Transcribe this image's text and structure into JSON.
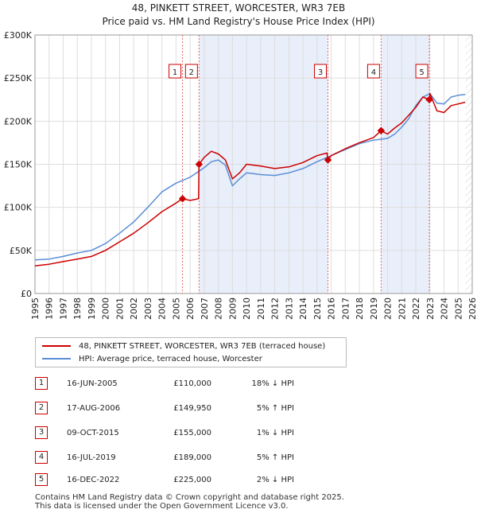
{
  "title_line1": "48, PINKETT STREET, WORCESTER, WR3 7EB",
  "title_line2": "Price paid vs. HM Land Registry's House Price Index (HPI)",
  "chart_data": {
    "type": "line",
    "ylim": [
      0,
      300000
    ],
    "xlim": [
      1995,
      2026
    ],
    "y_ticks": [
      0,
      50000,
      100000,
      150000,
      200000,
      250000,
      300000
    ],
    "y_tick_labels": [
      "£0",
      "£50K",
      "£100K",
      "£150K",
      "£200K",
      "£250K",
      "£300K"
    ],
    "x_tick_labels": [
      "1995",
      "1996",
      "1997",
      "1998",
      "1999",
      "2000",
      "2001",
      "2002",
      "2003",
      "2004",
      "2005",
      "2006",
      "2007",
      "2008",
      "2009",
      "2010",
      "2011",
      "2012",
      "2013",
      "2014",
      "2015",
      "2016",
      "2017",
      "2018",
      "2019",
      "2020",
      "2021",
      "2022",
      "2023",
      "2024",
      "2025",
      "2026"
    ],
    "grid": true,
    "shaded_regions": [
      [
        2006.63,
        2015.77
      ],
      [
        2019.54,
        2022.96
      ]
    ],
    "future_hatch_from": 2025.5,
    "series": [
      {
        "name": "48, PINKETT STREET, WORCESTER, WR3 7EB (terraced house)",
        "color": "#cc0000",
        "x": [
          1995.0,
          1996.0,
          1997.0,
          1998.0,
          1999.0,
          2000.0,
          2001.0,
          2002.0,
          2003.0,
          2004.0,
          2005.0,
          2005.46,
          2006.0,
          2006.6,
          2006.63,
          2007.0,
          2007.5,
          2008.0,
          2008.5,
          2009.0,
          2009.5,
          2010.0,
          2011.0,
          2012.0,
          2013.0,
          2014.0,
          2015.0,
          2015.7,
          2015.77,
          2016.0,
          2017.0,
          2018.0,
          2019.0,
          2019.54,
          2020.0,
          2020.5,
          2021.0,
          2021.5,
          2022.0,
          2022.5,
          2022.96,
          2023.0,
          2023.5,
          2024.0,
          2024.5,
          2025.0,
          2025.5
        ],
        "y": [
          32000,
          34000,
          37000,
          40000,
          43000,
          50000,
          60000,
          70000,
          82000,
          95000,
          105000,
          110000,
          108000,
          110000,
          149950,
          158000,
          165000,
          162000,
          155000,
          133000,
          140000,
          150000,
          148000,
          145000,
          147000,
          152000,
          160000,
          163000,
          155000,
          160000,
          168000,
          175000,
          181000,
          189000,
          185000,
          192000,
          198000,
          207000,
          216000,
          228000,
          225000,
          232000,
          212000,
          210000,
          218000,
          220000,
          222000
        ]
      },
      {
        "name": "HPI: Average price, terraced house, Worcester",
        "color": "#5b8ed6",
        "x": [
          1995.0,
          1996.0,
          1997.0,
          1998.0,
          1999.0,
          2000.0,
          2001.0,
          2002.0,
          2003.0,
          2004.0,
          2005.0,
          2006.0,
          2007.0,
          2007.5,
          2008.0,
          2008.5,
          2009.0,
          2009.5,
          2010.0,
          2011.0,
          2012.0,
          2013.0,
          2014.0,
          2015.0,
          2016.0,
          2017.0,
          2018.0,
          2019.0,
          2020.0,
          2020.5,
          2021.0,
          2021.5,
          2022.0,
          2022.5,
          2023.0,
          2023.5,
          2024.0,
          2024.5,
          2025.0,
          2025.5
        ],
        "y": [
          39000,
          40000,
          43000,
          47000,
          50000,
          58000,
          70000,
          83000,
          100000,
          118000,
          128000,
          135000,
          146000,
          153000,
          155000,
          149000,
          125000,
          133000,
          140000,
          138000,
          137000,
          140000,
          145000,
          153000,
          160000,
          167000,
          174000,
          178000,
          180000,
          185000,
          193000,
          203000,
          218000,
          228000,
          232000,
          221000,
          220000,
          228000,
          230000,
          231000
        ]
      }
    ],
    "sales": [
      {
        "label": "1",
        "x": 2005.46,
        "y": 110000
      },
      {
        "label": "2",
        "x": 2006.63,
        "y": 149950
      },
      {
        "label": "3",
        "x": 2015.77,
        "y": 155000
      },
      {
        "label": "4",
        "x": 2019.54,
        "y": 189000
      },
      {
        "label": "5",
        "x": 2022.96,
        "y": 225000
      }
    ]
  },
  "legend": {
    "item1": "48, PINKETT STREET, WORCESTER, WR3 7EB (terraced house)",
    "item2": "HPI: Average price, terraced house, Worcester",
    "color1": "#cc0000",
    "color2": "#5b8ed6"
  },
  "transactions": [
    {
      "num": "1",
      "date": "16-JUN-2005",
      "price": "£110,000",
      "hpi": "18% ↓ HPI"
    },
    {
      "num": "2",
      "date": "17-AUG-2006",
      "price": "£149,950",
      "hpi": "5% ↑ HPI"
    },
    {
      "num": "3",
      "date": "09-OCT-2015",
      "price": "£155,000",
      "hpi": "1% ↓ HPI"
    },
    {
      "num": "4",
      "date": "16-JUL-2019",
      "price": "£189,000",
      "hpi": "5% ↑ HPI"
    },
    {
      "num": "5",
      "date": "16-DEC-2022",
      "price": "£225,000",
      "hpi": "2% ↓ HPI"
    }
  ],
  "footer_line1": "Contains HM Land Registry data © Crown copyright and database right 2025.",
  "footer_line2": "This data is licensed under the Open Government Licence v3.0."
}
